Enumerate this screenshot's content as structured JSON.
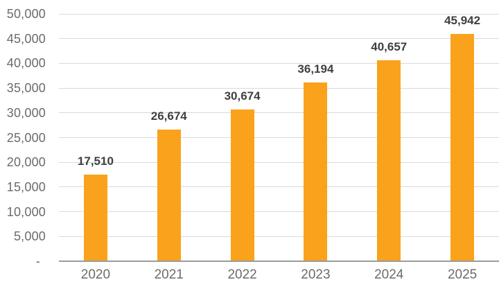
{
  "chart_data": {
    "type": "bar",
    "title": "",
    "xlabel": "",
    "ylabel": "",
    "categories": [
      "2020",
      "2021",
      "2022",
      "2023",
      "2024",
      "2025"
    ],
    "values": [
      17510,
      26674,
      30674,
      36194,
      40657,
      45942
    ],
    "value_labels": [
      "17,510",
      "26,674",
      "30,674",
      "36,194",
      "40,657",
      "45,942"
    ],
    "ylim": [
      0,
      50000
    ],
    "y_ticks": [
      {
        "label": "50,000",
        "value": 50000
      },
      {
        "label": "45,000",
        "value": 45000
      },
      {
        "label": "40,000",
        "value": 40000
      },
      {
        "label": "35,000",
        "value": 35000
      },
      {
        "label": "30,000",
        "value": 30000
      },
      {
        "label": "25,000",
        "value": 25000
      },
      {
        "label": "20,000",
        "value": 20000
      },
      {
        "label": "15,000",
        "value": 15000
      },
      {
        "label": "10,000",
        "value": 10000
      },
      {
        "label": "5,000",
        "value": 5000
      },
      {
        "label": "-",
        "value": 0
      }
    ],
    "grid": true,
    "legend": "none",
    "colors": {
      "bar": "#FAA21B",
      "value_label": "#3F3F3F",
      "axis_text": "#6B6B6B",
      "gridline": "#D9D9D9",
      "axis_line": "#9B9B9B",
      "background": "#FFFFFF"
    }
  }
}
